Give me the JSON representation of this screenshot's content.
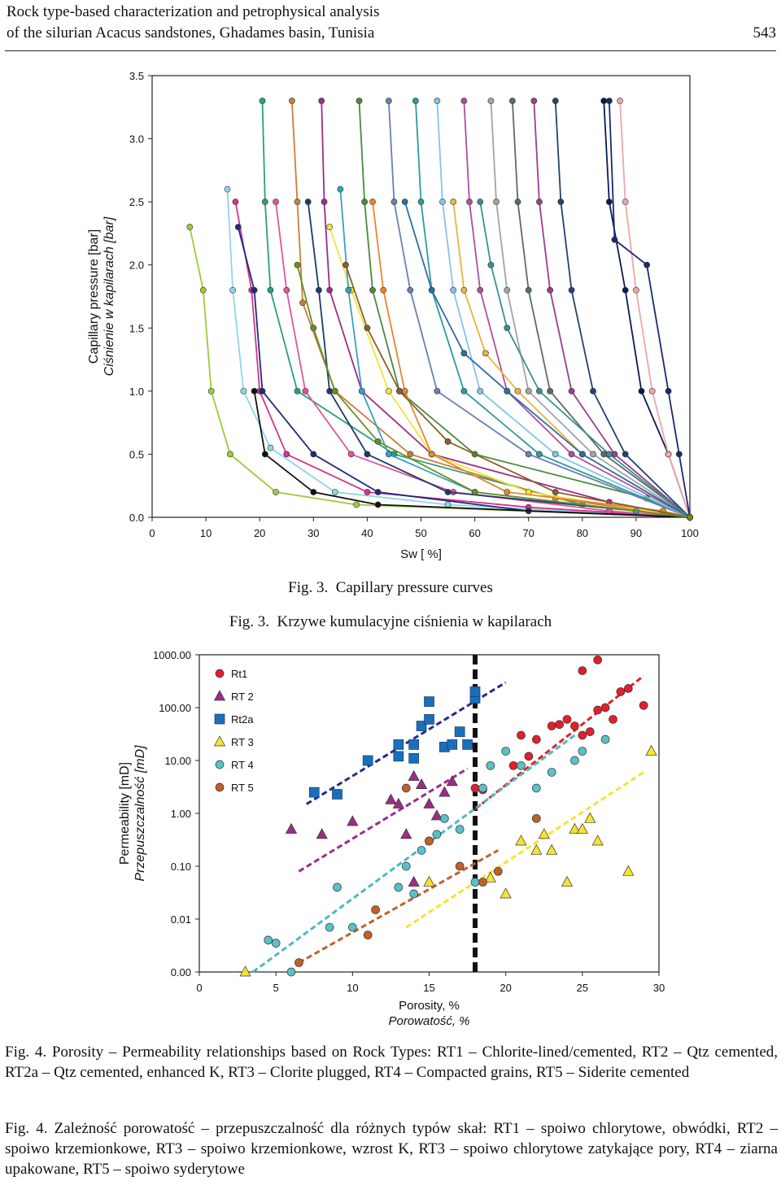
{
  "header": {
    "running_title_line1": "Rock type-based characterization and petrophysical analysis",
    "running_title_line2": "of the silurian Acacus sandstones, Ghadames basin, Tunisia",
    "page_number": "543"
  },
  "figure3": {
    "caption_en_label": "Fig. 3.",
    "caption_en_text": "Capillary pressure curves",
    "caption_pl_label": "Fig. 3.",
    "caption_pl_text": "Krzywe kumulacyjne ciśnienia w kapilarach"
  },
  "figure4": {
    "caption_en_label": "Fig. 4.",
    "caption_en_text": "Porosity – Permeability relationships based on Rock Types: RT1 – Chlorite-lined/cemented, RT2 – Qtz cemented, RT2a – Qtz cemented, enhanced K, RT3 – Clorite plugged, RT4 – Compacted grains, RT5 – Siderite cemented",
    "caption_pl_label": "Fig. 4.",
    "caption_pl_text": "Zależność porowatość – przepuszczalność dla różnych typów skał: RT1 – spoiwo chlorytowe, obwódki, RT2 – spoiwo krzemionkowe, RT3 – spoiwo krzemionkowe, wzrost K, RT3 – spoiwo chlorytowe zatykające pory, RT4 – ziarna upakowane, RT5 – spoiwo syderytowe"
  },
  "chart_data": [
    {
      "type": "line",
      "xlabel": "Sw [ %]",
      "ylabel": "Capillary pressure [bar]",
      "ylabel_pl": "Ciśnienie w kapilarach [bar]",
      "xlim": [
        0,
        100
      ],
      "ylim": [
        0.0,
        3.5
      ],
      "x_ticks": [
        "0",
        "10",
        "20",
        "30",
        "40",
        "50",
        "60",
        "70",
        "80",
        "90",
        "100"
      ],
      "y_ticks": [
        "0.0",
        "0.5",
        "1.0",
        "1.5",
        "2.0",
        "2.5",
        "3.0",
        "3.5"
      ],
      "grid": false,
      "note": "Many individual capillary pressure curves, approximate endpoints",
      "series": [
        {
          "name": "c1",
          "color": "#9ccb3b",
          "x": [
            7,
            9.5,
            11,
            14.5,
            23,
            38,
            100
          ],
          "y": [
            2.3,
            1.8,
            1.0,
            0.5,
            0.2,
            0.1,
            0.0
          ]
        },
        {
          "name": "c2",
          "color": "#8fd4e6",
          "x": [
            14,
            15,
            17,
            22,
            34,
            55,
            100
          ],
          "y": [
            2.6,
            1.8,
            1.0,
            0.55,
            0.2,
            0.1,
            0.0
          ]
        },
        {
          "name": "c3",
          "color": "#d6338a",
          "x": [
            15.5,
            18.5,
            20,
            25,
            40,
            70,
            100
          ],
          "y": [
            2.5,
            1.8,
            1.0,
            0.5,
            0.2,
            0.08,
            0.0
          ]
        },
        {
          "name": "c4",
          "color": "#2a9e7e",
          "x": [
            20.5,
            21,
            22,
            27,
            45,
            80,
            100
          ],
          "y": [
            3.3,
            2.5,
            1.8,
            1.0,
            0.5,
            0.1,
            0.0
          ]
        },
        {
          "name": "c5",
          "color": "#1f2a7c",
          "x": [
            16,
            19,
            20.5,
            30,
            42,
            70,
            100
          ],
          "y": [
            2.3,
            1.8,
            1.0,
            0.5,
            0.2,
            0.05,
            0.0
          ]
        },
        {
          "name": "c6",
          "color": "#c97e3c",
          "x": [
            26,
            27,
            28,
            34,
            48,
            75,
            100
          ],
          "y": [
            3.3,
            2.5,
            1.7,
            1.0,
            0.5,
            0.15,
            0.0
          ]
        },
        {
          "name": "c7",
          "color": "#e0549b",
          "x": [
            23,
            25,
            28.5,
            37,
            56,
            85,
            100
          ],
          "y": [
            2.5,
            1.8,
            1.0,
            0.5,
            0.2,
            0.05,
            0.0
          ]
        },
        {
          "name": "c8",
          "color": "#111111",
          "x": [
            19,
            21,
            30,
            42,
            100
          ],
          "y": [
            1.0,
            0.5,
            0.2,
            0.1,
            0.0
          ]
        },
        {
          "name": "c9",
          "color": "#9b2d86",
          "x": [
            31.5,
            32,
            33,
            39,
            52,
            85,
            100
          ],
          "y": [
            3.3,
            2.5,
            1.8,
            1.0,
            0.5,
            0.12,
            0.0
          ]
        },
        {
          "name": "c10",
          "color": "#1b3a6b",
          "x": [
            29,
            31,
            33,
            40,
            55,
            90,
            100
          ],
          "y": [
            2.5,
            1.8,
            1.0,
            0.5,
            0.2,
            0.05,
            0.0
          ]
        },
        {
          "name": "c11",
          "color": "#f2e43a",
          "x": [
            33,
            37,
            44,
            52,
            70,
            100
          ],
          "y": [
            2.3,
            1.8,
            1.0,
            0.5,
            0.2,
            0.0
          ]
        },
        {
          "name": "c12",
          "color": "#34a3c2",
          "x": [
            35,
            36.5,
            39,
            44,
            60,
            90,
            100
          ],
          "y": [
            2.6,
            1.8,
            1.0,
            0.5,
            0.2,
            0.05,
            0.0
          ]
        },
        {
          "name": "c13",
          "color": "#4a8a3c",
          "x": [
            38.5,
            39.5,
            41,
            46,
            60,
            92,
            100
          ],
          "y": [
            3.3,
            2.5,
            1.8,
            1.0,
            0.5,
            0.15,
            0.0
          ]
        },
        {
          "name": "c14",
          "color": "#e6872e",
          "x": [
            41,
            43,
            47,
            52,
            66,
            95,
            100
          ],
          "y": [
            2.5,
            1.8,
            1.0,
            0.5,
            0.2,
            0.05,
            0.0
          ]
        },
        {
          "name": "c15",
          "color": "#6b7fb2",
          "x": [
            44,
            45,
            48,
            53,
            70,
            100
          ],
          "y": [
            3.3,
            2.5,
            1.8,
            1.0,
            0.5,
            0.0
          ]
        },
        {
          "name": "c16",
          "color": "#2c9b9b",
          "x": [
            49,
            50,
            52,
            58,
            72,
            100
          ],
          "y": [
            3.3,
            2.5,
            1.8,
            1.0,
            0.5,
            0.0
          ]
        },
        {
          "name": "c17",
          "color": "#85c4e8",
          "x": [
            53,
            54,
            56,
            61,
            75,
            100
          ],
          "y": [
            3.3,
            2.5,
            1.8,
            1.0,
            0.5,
            0.0
          ]
        },
        {
          "name": "c18",
          "color": "#b04e9e",
          "x": [
            58,
            59,
            61,
            66,
            78,
            100
          ],
          "y": [
            3.3,
            2.5,
            1.8,
            1.0,
            0.5,
            0.0
          ]
        },
        {
          "name": "c19",
          "color": "#a4a4a4",
          "x": [
            63,
            64,
            66,
            70,
            82,
            100
          ],
          "y": [
            3.3,
            2.5,
            1.8,
            1.0,
            0.5,
            0.0
          ]
        },
        {
          "name": "c20",
          "color": "#5a6b6b",
          "x": [
            67,
            68,
            70,
            74,
            84,
            100
          ],
          "y": [
            3.3,
            2.5,
            1.8,
            1.0,
            0.5,
            0.0
          ]
        },
        {
          "name": "c21",
          "color": "#9c3d8e",
          "x": [
            71,
            72,
            74,
            78,
            86,
            100
          ],
          "y": [
            3.3,
            2.5,
            1.8,
            1.0,
            0.5,
            0.0
          ]
        },
        {
          "name": "c22",
          "color": "#26406e",
          "x": [
            75,
            76,
            78,
            82,
            88,
            100
          ],
          "y": [
            3.3,
            2.5,
            1.8,
            1.0,
            0.5,
            0.0
          ]
        },
        {
          "name": "c23",
          "color": "#0b1a50",
          "x": [
            84,
            85,
            88,
            91,
            96,
            100
          ],
          "y": [
            3.3,
            2.5,
            1.8,
            1.0,
            0.5,
            0.0
          ]
        },
        {
          "name": "c24",
          "color": "#f1a6a6",
          "x": [
            87,
            88,
            90,
            93,
            96,
            100
          ],
          "y": [
            3.3,
            2.5,
            1.8,
            1.0,
            0.5,
            0.0
          ]
        },
        {
          "name": "c25",
          "color": "#1a2a6e",
          "x": [
            85,
            86,
            92,
            96,
            98,
            100
          ],
          "y": [
            3.3,
            2.2,
            2.0,
            1.0,
            0.5,
            0.0
          ]
        },
        {
          "name": "c26",
          "color": "#3c8f8f",
          "x": [
            61,
            63,
            66,
            72,
            85,
            100
          ],
          "y": [
            2.5,
            2.0,
            1.5,
            1.0,
            0.5,
            0.0
          ]
        },
        {
          "name": "c27",
          "color": "#e8b440",
          "x": [
            56,
            58,
            62,
            68,
            80,
            100
          ],
          "y": [
            2.5,
            1.8,
            1.3,
            1.0,
            0.5,
            0.0
          ]
        },
        {
          "name": "c28",
          "color": "#2e6e9e",
          "x": [
            47,
            52,
            58,
            66,
            80,
            100
          ],
          "y": [
            2.5,
            1.8,
            1.3,
            1.0,
            0.5,
            0.0
          ]
        },
        {
          "name": "c29",
          "color": "#8b5e2a",
          "x": [
            36,
            40,
            46,
            55,
            75,
            100
          ],
          "y": [
            2.0,
            1.5,
            1.0,
            0.6,
            0.2,
            0.0
          ]
        },
        {
          "name": "c30",
          "color": "#6b8e23",
          "x": [
            27,
            30,
            34,
            42,
            60,
            100
          ],
          "y": [
            2.0,
            1.5,
            1.0,
            0.6,
            0.2,
            0.0
          ]
        }
      ]
    },
    {
      "type": "scatter",
      "xlabel": "Porosity, %",
      "xlabel_pl": "Porowatość, %",
      "ylabel": "Permeability [mD]",
      "ylabel_pl": "Przepuszczalność [mD]",
      "xlim": [
        0,
        30
      ],
      "ylim_log": [
        0.001,
        1000
      ],
      "x_ticks": [
        "0",
        "5",
        "10",
        "15",
        "20",
        "25",
        "30"
      ],
      "y_ticks": [
        "0.00",
        "0.01",
        "0.10",
        "1.00",
        "10.00",
        "100.00",
        "1000.00"
      ],
      "cutoff_line_x": 18,
      "legend_position": "top-left",
      "series": [
        {
          "name": "Rt1",
          "marker": "circle",
          "color": "#e0202a",
          "x": [
            18,
            18.5,
            20.5,
            21.5,
            21,
            22,
            23,
            23.5,
            24,
            24.5,
            25,
            25.5,
            26,
            26.5,
            27,
            27.5,
            28,
            29,
            25,
            26
          ],
          "y": [
            3,
            2.8,
            8,
            12,
            30,
            25,
            45,
            48,
            60,
            45,
            30,
            35,
            90,
            100,
            60,
            200,
            230,
            110,
            500,
            800
          ],
          "trend": {
            "x": [
              18,
              29
            ],
            "y": [
              1.2,
              400
            ]
          }
        },
        {
          "name": "RT 2",
          "marker": "triangle",
          "color": "#9b2d86",
          "x": [
            6,
            8,
            10,
            12.5,
            13,
            14,
            14.5,
            15,
            15.5,
            16,
            16.5,
            13.5,
            14
          ],
          "y": [
            0.5,
            0.4,
            0.7,
            1.8,
            1.5,
            5,
            3.5,
            1.5,
            0.9,
            2.5,
            4,
            0.4,
            0.05
          ],
          "trend": {
            "x": [
              6.5,
              17.5
            ],
            "y": [
              0.08,
              7
            ]
          }
        },
        {
          "name": "Rt2a",
          "marker": "square",
          "color": "#1a6fba",
          "x": [
            7.5,
            9,
            11,
            13,
            13,
            14,
            14,
            14.5,
            15,
            15,
            16,
            16.5,
            17,
            17.5,
            18,
            18
          ],
          "y": [
            2.5,
            2.3,
            10,
            20,
            12,
            20,
            11,
            45,
            130,
            60,
            18,
            20,
            35,
            20,
            150,
            200
          ],
          "trend": {
            "x": [
              7,
              20
            ],
            "y": [
              1.5,
              300
            ]
          }
        },
        {
          "name": "RT 3",
          "marker": "triangle",
          "color": "#f5e42e",
          "x": [
            3,
            15,
            19,
            20,
            21,
            22,
            22.5,
            23,
            24,
            24.5,
            25,
            25.5,
            26,
            28,
            29.5
          ],
          "y": [
            0.001,
            0.05,
            0.06,
            0.03,
            0.3,
            0.2,
            0.4,
            0.2,
            0.05,
            0.5,
            0.5,
            0.8,
            0.3,
            0.08,
            15
          ],
          "trend": {
            "x": [
              13.5,
              29
            ],
            "y": [
              0.007,
              6
            ]
          }
        },
        {
          "name": "RT 4",
          "marker": "circle",
          "color": "#5bc0c8",
          "x": [
            4.5,
            5,
            6,
            8.5,
            9,
            10,
            13,
            13.5,
            14,
            14.5,
            15,
            15.5,
            16,
            17,
            18,
            18.5,
            19,
            20,
            21,
            22,
            23,
            24.5,
            25,
            26.5
          ],
          "y": [
            0.004,
            0.0035,
            0.001,
            0.007,
            0.04,
            0.007,
            0.04,
            0.1,
            0.03,
            0.2,
            0.3,
            0.4,
            0.8,
            0.5,
            0.05,
            3,
            8,
            15,
            8,
            3,
            6,
            10,
            15,
            25
          ],
          "trend": {
            "x": [
              3.5,
              24.5
            ],
            "y": [
              0.001,
              30
            ]
          }
        },
        {
          "name": "RT 5",
          "marker": "circle",
          "color": "#c0602a",
          "x": [
            6.5,
            11,
            11.5,
            13.5,
            15,
            17,
            18.5,
            19.5,
            22
          ],
          "y": [
            0.0015,
            0.005,
            0.015,
            3,
            0.3,
            0.1,
            0.05,
            0.08,
            0.8
          ],
          "trend": {
            "x": [
              6.5,
              19.5
            ],
            "y": [
              0.0015,
              0.2
            ]
          }
        }
      ]
    }
  ]
}
